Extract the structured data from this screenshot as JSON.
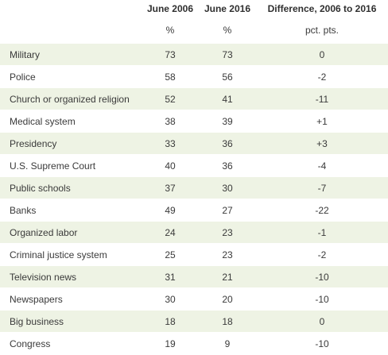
{
  "header": {
    "col_label": "",
    "col_2006": "June 2006",
    "col_2016": "June 2016",
    "col_diff": "Difference, 2006 to 2016"
  },
  "units": {
    "col_label": "",
    "col_2006": "%",
    "col_2016": "%",
    "col_diff": "pct. pts."
  },
  "rows": [
    {
      "institution": "Military",
      "june_2006": "73",
      "june_2016": "73",
      "difference": "0"
    },
    {
      "institution": "Police",
      "june_2006": "58",
      "june_2016": "56",
      "difference": "-2"
    },
    {
      "institution": "Church or organized religion",
      "june_2006": "52",
      "june_2016": "41",
      "difference": "-11"
    },
    {
      "institution": "Medical system",
      "june_2006": "38",
      "june_2016": "39",
      "difference": "+1"
    },
    {
      "institution": "Presidency",
      "june_2006": "33",
      "june_2016": "36",
      "difference": "+3"
    },
    {
      "institution": "U.S. Supreme Court",
      "june_2006": "40",
      "june_2016": "36",
      "difference": "-4"
    },
    {
      "institution": "Public schools",
      "june_2006": "37",
      "june_2016": "30",
      "difference": "-7"
    },
    {
      "institution": "Banks",
      "june_2006": "49",
      "june_2016": "27",
      "difference": "-22"
    },
    {
      "institution": "Organized labor",
      "june_2006": "24",
      "june_2016": "23",
      "difference": "-1"
    },
    {
      "institution": "Criminal justice system",
      "june_2006": "25",
      "june_2016": "23",
      "difference": "-2"
    },
    {
      "institution": "Television news",
      "june_2006": "31",
      "june_2016": "21",
      "difference": "-10"
    },
    {
      "institution": "Newspapers",
      "june_2006": "30",
      "june_2016": "20",
      "difference": "-10"
    },
    {
      "institution": "Big business",
      "june_2006": "18",
      "june_2016": "18",
      "difference": "0"
    },
    {
      "institution": "Congress",
      "june_2006": "19",
      "june_2016": "9",
      "difference": "-10"
    }
  ]
}
